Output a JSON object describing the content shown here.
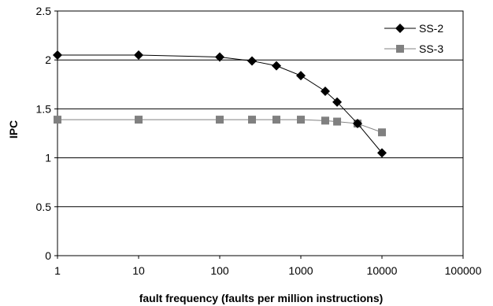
{
  "chart_data": {
    "type": "line",
    "xlabel": "fault frequency (faults per million instructions)",
    "ylabel": "IPC",
    "x_scale": "log",
    "xlim": [
      1,
      100000
    ],
    "ylim": [
      0,
      2.5
    ],
    "x_ticks": [
      "1",
      "10",
      "100",
      "1000",
      "10000",
      "100000"
    ],
    "y_ticks": [
      "0",
      "0.5",
      "1",
      "1.5",
      "2",
      "2.5"
    ],
    "grid": "horizontal",
    "legend_position": "top-right",
    "series": [
      {
        "name": "SS-2",
        "color": "#000000",
        "marker": "diamond",
        "x": [
          1,
          10,
          100,
          250,
          500,
          1000,
          2000,
          2800,
          5000,
          10000
        ],
        "y": [
          2.05,
          2.05,
          2.03,
          1.99,
          1.94,
          1.84,
          1.68,
          1.57,
          1.35,
          1.05
        ]
      },
      {
        "name": "SS-3",
        "color": "#808080",
        "marker": "square",
        "x": [
          1,
          10,
          100,
          250,
          500,
          1000,
          2000,
          2800,
          5000,
          10000
        ],
        "y": [
          1.39,
          1.39,
          1.39,
          1.39,
          1.39,
          1.39,
          1.38,
          1.37,
          1.35,
          1.26
        ]
      }
    ]
  }
}
